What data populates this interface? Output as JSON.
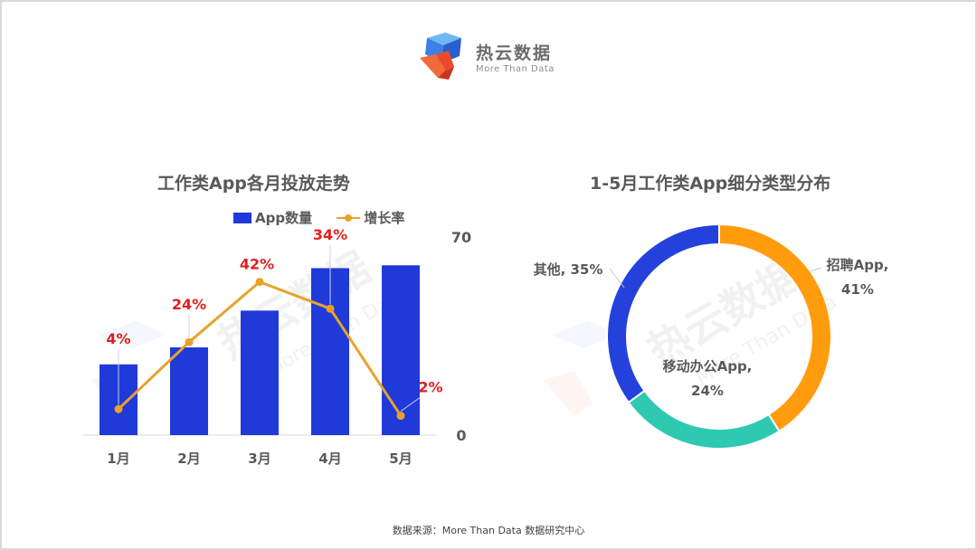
{
  "logo": {
    "name": "热云数据",
    "tagline": "More Than Data"
  },
  "watermark": {
    "name": "热云数据",
    "tagline": "More Than Data"
  },
  "footer": {
    "source": "数据来源：More Than Data 数据研究中心"
  },
  "colors": {
    "bar": "#1f3ad8",
    "line": "#e8a22a",
    "label_red": "#e01e1e",
    "recruit": "#ff9c0e",
    "office": "#2ec9b0",
    "other": "#2541dc"
  },
  "chart_data": [
    {
      "type": "bar",
      "title": "工作类App各月投放走势",
      "categories": [
        "1月",
        "2月",
        "3月",
        "4月",
        "5月"
      ],
      "series": [
        {
          "name": "App数量",
          "type": "bar",
          "values": [
            25,
            31,
            44,
            59,
            60
          ]
        },
        {
          "name": "增长率",
          "type": "line",
          "values": [
            4,
            24,
            42,
            34,
            2
          ],
          "labels": [
            "4%",
            "24%",
            "42%",
            "34%",
            "2%"
          ]
        }
      ],
      "ylim": [
        0,
        70
      ],
      "y_tick_labels": [
        "70",
        "0"
      ],
      "secondary_ylim": [
        0,
        50
      ],
      "grid": false,
      "legend": "top"
    },
    {
      "type": "pie",
      "title": "1-5月工作类App细分类型分布",
      "slices": [
        {
          "label": "招聘App,",
          "value": 41,
          "value_label": "41%"
        },
        {
          "label": "移动办公App,",
          "value": 24,
          "value_label": "24%"
        },
        {
          "label": "其他, 35%",
          "value": 35,
          "value_label": ""
        }
      ],
      "donut": true,
      "legend": "none"
    }
  ]
}
